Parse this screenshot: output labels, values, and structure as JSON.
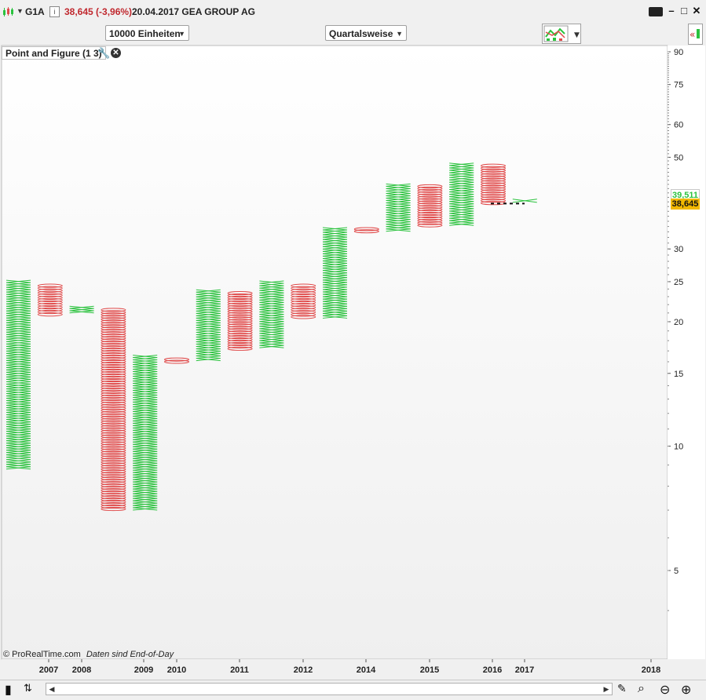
{
  "header": {
    "symbol": "G1A",
    "price_change": "38,645 (-3,96%)",
    "description": "20.04.2017 GEA GROUP AG",
    "info_label": "i"
  },
  "toolbar": {
    "units_label": "10000 Einheiten",
    "period_label": "Quartalsweise"
  },
  "indicator": {
    "label": "Point and Figure (1 3)"
  },
  "footer": {
    "copyright": "© ProRealTime.com",
    "note": "Daten sind End-of-Day"
  },
  "price_tags": {
    "high": "39,511",
    "last": "38,645"
  },
  "colors": {
    "up": "#2bc23e",
    "down": "#e04a4a",
    "last_tag_bg": "#f2b800",
    "high_tag_fg": "#2bc23e"
  },
  "chart_data": {
    "type": "point-and-figure",
    "y_scale": "log",
    "ylim": [
      3,
      90
    ],
    "y_ticks": [
      90,
      75,
      60,
      50,
      30,
      25,
      20,
      15,
      10,
      5
    ],
    "x_labels": [
      "2007",
      "2008",
      "2009",
      "2010",
      "2011",
      "2012",
      "2014",
      "2015",
      "2016",
      "2017",
      "2018"
    ],
    "columns": [
      {
        "type": "X",
        "low": 8.8,
        "high": 25.2
      },
      {
        "type": "O",
        "low": 20.7,
        "high": 24.6
      },
      {
        "type": "X",
        "low": 21.0,
        "high": 21.8
      },
      {
        "type": "O",
        "low": 7.0,
        "high": 21.5
      },
      {
        "type": "X",
        "low": 7.0,
        "high": 16.6
      },
      {
        "type": "O",
        "low": 15.9,
        "high": 16.3
      },
      {
        "type": "X",
        "low": 16.1,
        "high": 23.9
      },
      {
        "type": "O",
        "low": 17.1,
        "high": 23.6
      },
      {
        "type": "X",
        "low": 17.3,
        "high": 25.1
      },
      {
        "type": "O",
        "low": 20.4,
        "high": 24.6
      },
      {
        "type": "X",
        "low": 20.4,
        "high": 33.8
      },
      {
        "type": "O",
        "low": 32.9,
        "high": 33.7
      },
      {
        "type": "X",
        "low": 33.1,
        "high": 43.1
      },
      {
        "type": "O",
        "low": 34.0,
        "high": 42.8
      },
      {
        "type": "X",
        "low": 34.2,
        "high": 48.4
      },
      {
        "type": "O",
        "low": 38.5,
        "high": 48.0
      },
      {
        "type": "X",
        "low": 38.9,
        "high": 39.6
      }
    ],
    "last_price": 38.645,
    "high_price": 39.511,
    "grid": false
  }
}
